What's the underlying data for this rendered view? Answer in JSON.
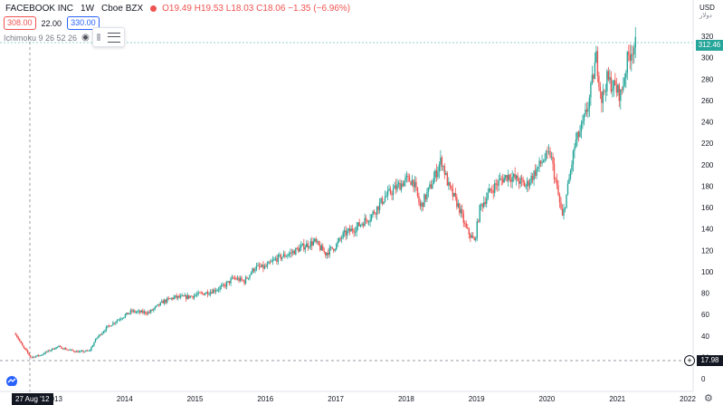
{
  "legend": {
    "symbol": "FACEBOOK INC",
    "interval": "1W",
    "exchange": "Cboe BZX",
    "o": "O19.49",
    "h": "H19.53",
    "l": "L18.03",
    "c": "C18.06",
    "change": "−1.35 (−6.96%)"
  },
  "order": {
    "sell": "308.00",
    "qty": "22.00",
    "buy": "330.00"
  },
  "indicator": {
    "label": "Ichimoku 9 26 52 26"
  },
  "price_axis": {
    "currency": "USD",
    "currency_local": "دولار",
    "last_price": "312.46",
    "crosshair_price": "17.98"
  },
  "crosshair_time": "27 Aug '12",
  "colors": {
    "up": "#26a69a",
    "down": "#ef5350",
    "grid": "#f0f3fa"
  },
  "icons": {
    "toolbox": "menu-lines-icon",
    "crosshair_add": "plus-circle-icon",
    "logo": "tradingview-logo-icon",
    "settings": "gear-icon",
    "visibility": "eye-icon"
  },
  "chart_data": {
    "type": "candlestick",
    "title": "FACEBOOK INC",
    "y_ticks": [
      0,
      20,
      40,
      60,
      80,
      100,
      120,
      140,
      160,
      180,
      200,
      220,
      240,
      260,
      280,
      300,
      320
    ],
    "x_ticks": [
      "2013",
      "2014",
      "2015",
      "2016",
      "2017",
      "2018",
      "2019",
      "2020",
      "2021",
      "2022"
    ],
    "ylim": [
      -8,
      330
    ],
    "series": [
      {
        "values": [
          [
            2012.45,
            42
          ],
          [
            2012.55,
            30
          ],
          [
            2012.67,
            20
          ],
          [
            2012.8,
            22
          ],
          [
            2012.95,
            27
          ],
          [
            2013.05,
            30
          ],
          [
            2013.2,
            27
          ],
          [
            2013.35,
            25
          ],
          [
            2013.5,
            26
          ],
          [
            2013.6,
            38
          ],
          [
            2013.75,
            48
          ],
          [
            2013.9,
            55
          ],
          [
            2014.1,
            63
          ],
          [
            2014.2,
            62
          ],
          [
            2014.35,
            62
          ],
          [
            2014.55,
            72
          ],
          [
            2014.7,
            76
          ],
          [
            2014.85,
            76
          ],
          [
            2015.0,
            78
          ],
          [
            2015.2,
            81
          ],
          [
            2015.4,
            86
          ],
          [
            2015.55,
            94
          ],
          [
            2015.7,
            91
          ],
          [
            2015.85,
            104
          ],
          [
            2016.0,
            104
          ],
          [
            2016.15,
            112
          ],
          [
            2016.35,
            117
          ],
          [
            2016.55,
            124
          ],
          [
            2016.7,
            128
          ],
          [
            2016.85,
            117
          ],
          [
            2017.0,
            124
          ],
          [
            2017.1,
            134
          ],
          [
            2017.3,
            142
          ],
          [
            2017.5,
            152
          ],
          [
            2017.7,
            170
          ],
          [
            2017.85,
            178
          ],
          [
            2018.0,
            186
          ],
          [
            2018.1,
            185
          ],
          [
            2018.2,
            160
          ],
          [
            2018.35,
            180
          ],
          [
            2018.5,
            205
          ],
          [
            2018.6,
            180
          ],
          [
            2018.75,
            160
          ],
          [
            2018.85,
            140
          ],
          [
            2018.97,
            128
          ],
          [
            2019.05,
            160
          ],
          [
            2019.2,
            176
          ],
          [
            2019.35,
            186
          ],
          [
            2019.45,
            190
          ],
          [
            2019.6,
            185
          ],
          [
            2019.7,
            180
          ],
          [
            2019.8,
            190
          ],
          [
            2019.95,
            205
          ],
          [
            2020.05,
            210
          ],
          [
            2020.15,
            175
          ],
          [
            2020.22,
            150
          ],
          [
            2020.3,
            180
          ],
          [
            2020.4,
            220
          ],
          [
            2020.5,
            235
          ],
          [
            2020.6,
            260
          ],
          [
            2020.7,
            300
          ],
          [
            2020.78,
            260
          ],
          [
            2020.85,
            280
          ],
          [
            2020.95,
            273
          ],
          [
            2021.05,
            265
          ],
          [
            2021.15,
            300
          ],
          [
            2021.22,
            310
          ],
          [
            2021.27,
            312
          ]
        ]
      }
    ]
  }
}
